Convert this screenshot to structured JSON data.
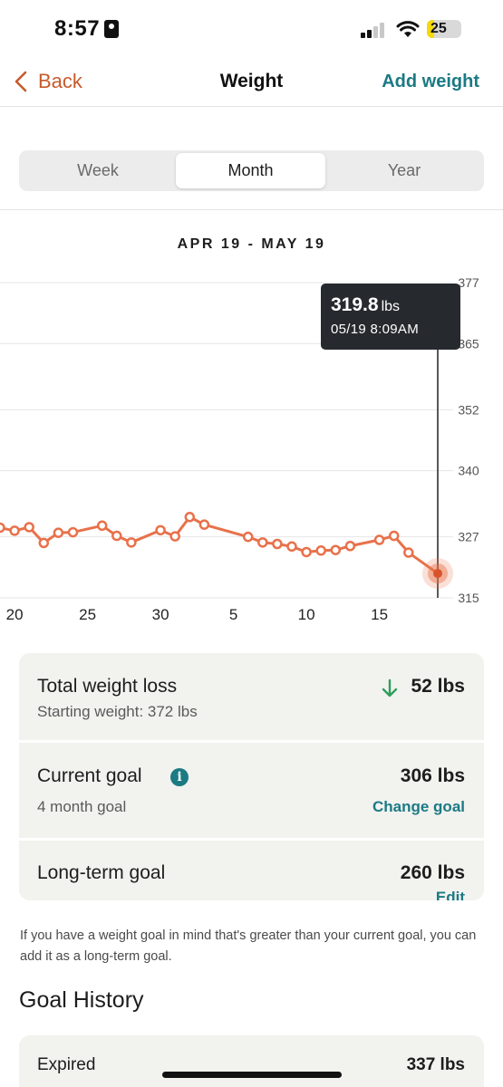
{
  "status_bar": {
    "time": "8:57",
    "battery": "25"
  },
  "nav": {
    "back_label": "Back",
    "title": "Weight",
    "action_label": "Add weight"
  },
  "tabs": [
    {
      "label": "Week",
      "active": false
    },
    {
      "label": "Month",
      "active": true
    },
    {
      "label": "Year",
      "active": false
    }
  ],
  "date_range": "APR 19 - MAY 19",
  "tooltip": {
    "value": "319.8",
    "unit": "lbs",
    "datetime": "05/19 8:09AM"
  },
  "chart_data": {
    "type": "line",
    "x_tick_labels": [
      "20",
      "25",
      "30",
      "5",
      "10",
      "15"
    ],
    "y_tick_labels": [
      "377",
      "365",
      "352",
      "340",
      "327",
      "315"
    ],
    "ylim": [
      315,
      377
    ],
    "grid": true,
    "line_color": "#e8714a",
    "series": [
      {
        "x": [
          "04/19",
          "04/20",
          "04/21",
          "04/22",
          "04/23",
          "04/24",
          "04/26",
          "04/27",
          "04/28",
          "04/30",
          "05/01",
          "05/02",
          "05/03",
          "05/06",
          "05/07",
          "05/08",
          "05/09",
          "05/10",
          "05/11",
          "05/12",
          "05/13",
          "05/15",
          "05/16",
          "05/17",
          "05/19"
        ],
        "values": [
          328.8,
          328.2,
          328.9,
          325.8,
          327.8,
          327.9,
          329.2,
          327.2,
          325.9,
          328.3,
          327.1,
          330.9,
          329.4,
          327.0,
          325.9,
          325.6,
          325.1,
          324.0,
          324.3,
          324.4,
          325.2,
          326.4,
          327.2,
          323.9,
          319.8
        ]
      }
    ]
  },
  "summary": {
    "total_loss": {
      "title": "Total weight loss",
      "subtitle": "Starting weight: 372 lbs",
      "value": "52 lbs"
    },
    "current_goal": {
      "title": "Current goal",
      "subtitle": "4 month goal",
      "value": "306 lbs",
      "link": "Change goal"
    },
    "long_term_goal": {
      "title": "Long-term goal",
      "value": "260 lbs",
      "link": "Edit"
    }
  },
  "note": "If you have a weight goal in mind that's greater than your current goal, you can add it as a long-term goal.",
  "goal_history": {
    "title": "Goal History",
    "items": [
      {
        "label": "Expired",
        "value": "337 lbs"
      }
    ]
  },
  "colors": {
    "accent": "#c85a2b",
    "link": "#1b7a84",
    "line": "#e8714a",
    "down_arrow": "#2e9e5b"
  }
}
